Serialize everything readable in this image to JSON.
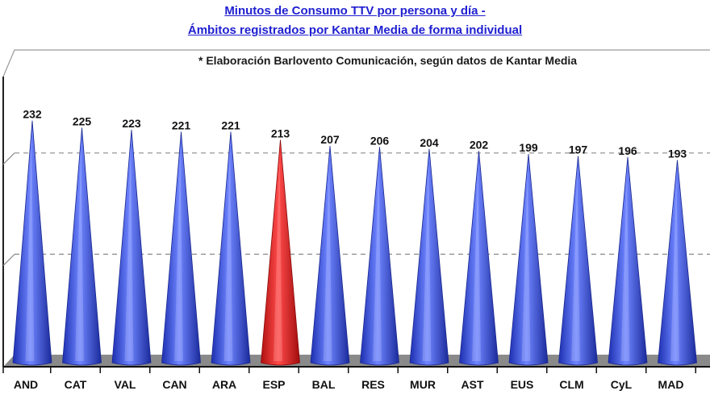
{
  "titles": {
    "line1": "Minutos de Consumo TTV por persona y día -",
    "line2": "Ámbitos registrados por Kantar Media de forma individual"
  },
  "colors": {
    "title": "#1f1fd0",
    "bar": "#3d55e0",
    "highlight": "#e01b1b",
    "floor": "#8a8a8a"
  },
  "chart_data": {
    "type": "bar",
    "title": "Minutos de Consumo TTV por persona y día - Ámbitos registrados por Kantar Media de forma individual",
    "note": "* Elaboración Barlovento Comunicación, según datos de Kantar Media",
    "categories": [
      "AND",
      "CAT",
      "VAL",
      "CAN",
      "ARA",
      "ESP",
      "BAL",
      "RES",
      "MUR",
      "AST",
      "EUS",
      "CLM",
      "CyL",
      "MAD"
    ],
    "values": [
      232,
      225,
      223,
      221,
      221,
      213,
      207,
      206,
      204,
      202,
      199,
      197,
      196,
      193
    ],
    "highlight": "ESP",
    "ylim": [
      0,
      250
    ],
    "grid": true,
    "gridlines": [
      100,
      200
    ]
  }
}
